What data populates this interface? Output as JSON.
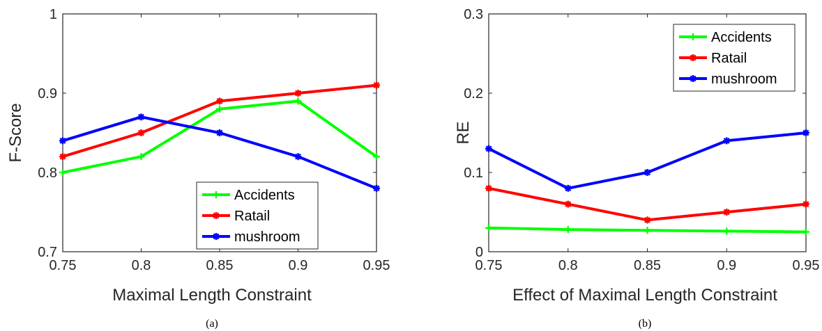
{
  "chart_data": [
    {
      "type": "line",
      "caption": "(a)",
      "xlabel": "Maximal Length Constraint",
      "ylabel": "F-Score",
      "x": [
        0.75,
        0.8,
        0.85,
        0.9,
        0.95
      ],
      "x_tick_labels": [
        "0.75",
        "0.8",
        "0.85",
        "0.9",
        "0.95"
      ],
      "xlim": [
        0.75,
        0.95
      ],
      "ylim": [
        0.7,
        1.0
      ],
      "y_ticks": [
        0.7,
        0.8,
        0.9,
        1.0
      ],
      "y_tick_labels": [
        "0.7",
        "0.8",
        "0.9",
        "1"
      ],
      "legend_position": "bottom-right",
      "series": [
        {
          "name": "Accidents",
          "color": "#00ff00",
          "marker": "plus",
          "values": [
            0.8,
            0.82,
            0.88,
            0.89,
            0.82
          ]
        },
        {
          "name": "Ratail",
          "color": "#ff0000",
          "marker": "asterisk",
          "values": [
            0.82,
            0.85,
            0.89,
            0.9,
            0.91
          ]
        },
        {
          "name": "mushroom",
          "color": "#0000ff",
          "marker": "asterisk",
          "values": [
            0.84,
            0.87,
            0.85,
            0.82,
            0.78
          ]
        }
      ]
    },
    {
      "type": "line",
      "caption": "(b)",
      "xlabel": "Effect of Maximal Length Constraint",
      "ylabel": "RE",
      "x": [
        0.75,
        0.8,
        0.85,
        0.9,
        0.95
      ],
      "x_tick_labels": [
        "0.75",
        "0.8",
        "0.85",
        "0.9",
        "0.95"
      ],
      "xlim": [
        0.75,
        0.95
      ],
      "ylim": [
        0,
        0.3
      ],
      "y_ticks": [
        0,
        0.1,
        0.2,
        0.3
      ],
      "y_tick_labels": [
        "0",
        "0.1",
        "0.2",
        "0.3"
      ],
      "legend_position": "top-right",
      "series": [
        {
          "name": "Accidents",
          "color": "#00ff00",
          "marker": "plus",
          "values": [
            0.03,
            0.028,
            0.027,
            0.026,
            0.025
          ]
        },
        {
          "name": "Ratail",
          "color": "#ff0000",
          "marker": "asterisk",
          "values": [
            0.08,
            0.06,
            0.04,
            0.05,
            0.06
          ]
        },
        {
          "name": "mushroom",
          "color": "#0000ff",
          "marker": "asterisk",
          "values": [
            0.13,
            0.08,
            0.1,
            0.14,
            0.15
          ]
        }
      ]
    }
  ]
}
